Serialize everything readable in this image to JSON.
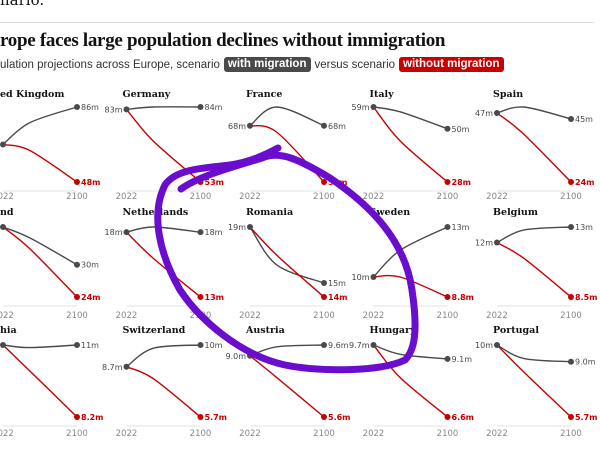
{
  "intro_text": "nario.",
  "header": {
    "title": "rope faces large population declines without immigration",
    "subtitle_pre": "ulation projections across Europe, scenario",
    "legend_with": "with migration",
    "subtitle_mid": "versus scenario",
    "legend_without": "without migration"
  },
  "colors": {
    "with": "#4a4a4a",
    "without": "#c70000",
    "annotation": "#6a0dcc"
  },
  "chart_data": {
    "type": "line",
    "x_ticks": [
      "2022",
      "2100"
    ],
    "x": [
      2022,
      2050,
      2100
    ],
    "panels": [
      {
        "name": "ed Kingdom",
        "with": [
          67,
          78,
          86
        ],
        "without": [
          67,
          64,
          48
        ],
        "labels": {
          "start": "",
          "with_end": "86m",
          "without_end": "48m"
        }
      },
      {
        "name": "Germany",
        "with": [
          83,
          84,
          84
        ],
        "without": [
          83,
          70,
          53
        ],
        "labels": {
          "start": "83m",
          "with_end": "84m",
          "without_end": "53m"
        }
      },
      {
        "name": "France",
        "with": [
          68,
          71,
          68
        ],
        "without": [
          68,
          67,
          59
        ],
        "labels": {
          "start": "68m",
          "with_end": "68m",
          "without_end": "59m"
        }
      },
      {
        "name": "Italy",
        "with": [
          59,
          57,
          50
        ],
        "without": [
          59,
          45,
          28
        ],
        "labels": {
          "start": "59m",
          "with_end": "50m",
          "without_end": "28m"
        }
      },
      {
        "name": "Spain",
        "with": [
          47,
          49,
          45
        ],
        "without": [
          47,
          40,
          24
        ],
        "labels": {
          "start": "47m",
          "with_end": "45m",
          "without_end": "24m"
        }
      },
      {
        "name": "nd",
        "with": [
          37,
          35,
          30
        ],
        "without": [
          37,
          33,
          24
        ],
        "labels": {
          "start": "",
          "with_end": "30m",
          "without_end": "24m"
        }
      },
      {
        "name": "Netherlands",
        "with": [
          18,
          18.4,
          18
        ],
        "without": [
          18,
          16,
          13
        ],
        "labels": {
          "start": "18m",
          "with_end": "18m",
          "without_end": "13m"
        }
      },
      {
        "name": "Romania",
        "with": [
          19,
          16.3,
          15
        ],
        "without": [
          19,
          17,
          14
        ],
        "labels": {
          "start": "19m",
          "with_end": "15m",
          "without_end": "14m"
        }
      },
      {
        "name": "Sweden",
        "with": [
          10,
          11.6,
          13
        ],
        "without": [
          10,
          10,
          8.8
        ],
        "labels": {
          "start": "10m",
          "with_end": "13m",
          "without_end": "8.8m"
        }
      },
      {
        "name": "Belgium",
        "with": [
          12,
          12.8,
          13
        ],
        "without": [
          12,
          11,
          8.5
        ],
        "labels": {
          "start": "12m",
          "with_end": "13m",
          "without_end": "8.5m"
        }
      },
      {
        "name": "hia",
        "with": [
          11,
          10.9,
          11
        ],
        "without": [
          11,
          10,
          8.2
        ],
        "labels": {
          "start": "",
          "with_end": "11m",
          "without_end": "8.2m"
        }
      },
      {
        "name": "Switzerland",
        "with": [
          8.7,
          9.8,
          10
        ],
        "without": [
          8.7,
          8,
          5.7
        ],
        "labels": {
          "start": "8.7m",
          "with_end": "10m",
          "without_end": "5.7m"
        }
      },
      {
        "name": "Austria",
        "with": [
          9.0,
          9.5,
          9.6
        ],
        "without": [
          9.0,
          7.8,
          5.6
        ],
        "labels": {
          "start": "9.0m",
          "with_end": "9.6m",
          "without_end": "5.6m"
        }
      },
      {
        "name": "Hungary",
        "with": [
          9.7,
          9.3,
          9.1
        ],
        "without": [
          9.7,
          8.3,
          6.6
        ],
        "labels": {
          "start": "9.7m",
          "with_end": "9.1m",
          "without_end": "6.6m"
        }
      },
      {
        "name": "Portugal",
        "with": [
          10,
          9.2,
          9.0
        ],
        "without": [
          10,
          8.4,
          5.7
        ],
        "labels": {
          "start": "10m",
          "with_end": "9.0m",
          "without_end": "5.7m"
        }
      }
    ]
  }
}
